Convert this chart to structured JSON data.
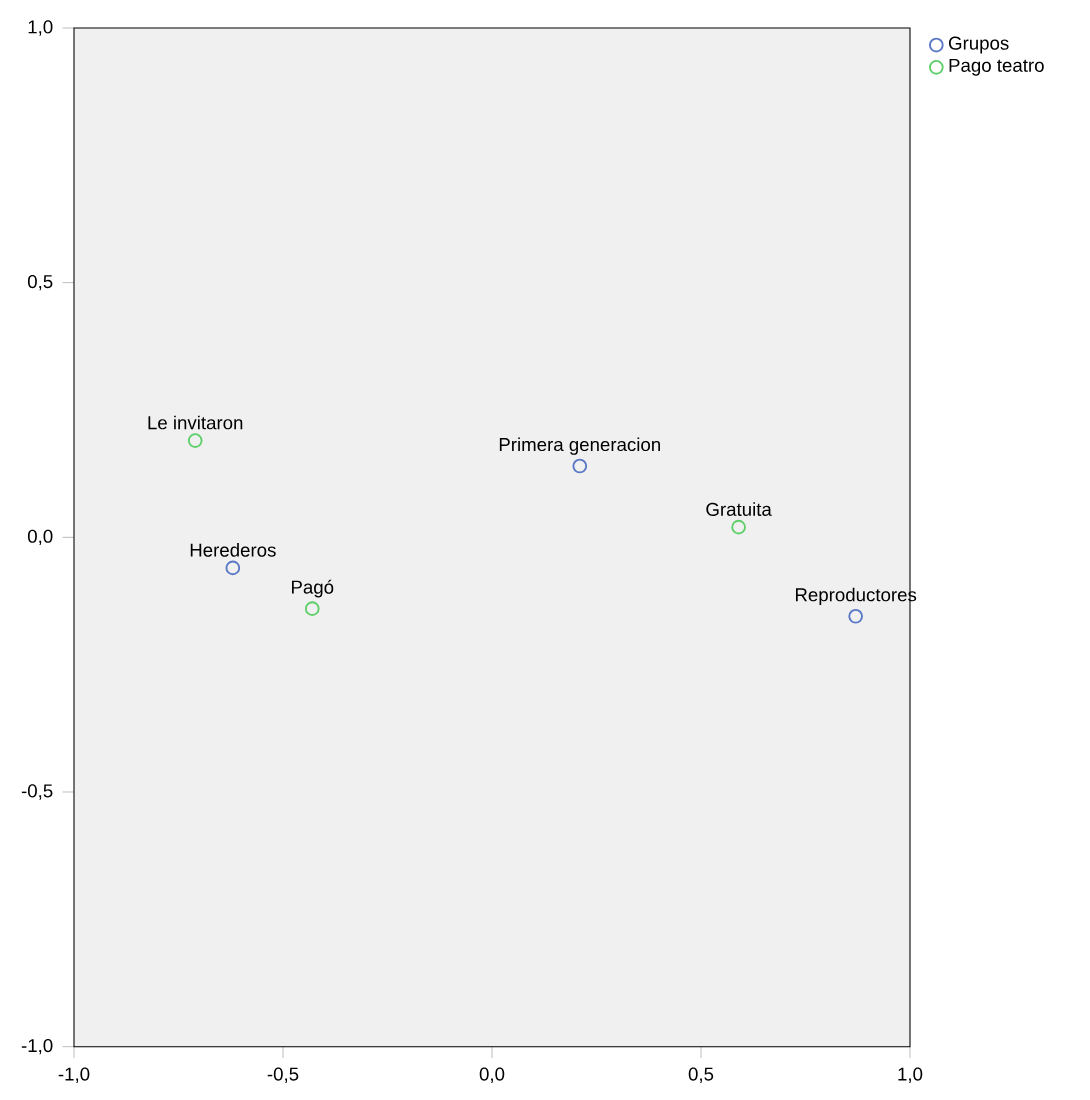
{
  "chart_data": {
    "type": "scatter",
    "series": [
      {
        "name": "Grupos",
        "color": "#5b78c6",
        "x": [
          -0.62,
          0.21,
          0.87
        ],
        "values": [
          -0.06,
          0.14,
          -0.155
        ]
      },
      {
        "name": "Pago teatro",
        "color": "#5fcf6a",
        "x": [
          -0.71,
          -0.43,
          0.59
        ],
        "values": [
          0.19,
          -0.14,
          0.02
        ]
      }
    ],
    "annotations": [
      {
        "text": "Herederos",
        "x": -0.62,
        "y": -0.06
      },
      {
        "text": "Primera generacion",
        "x": 0.21,
        "y": 0.14
      },
      {
        "text": "Reproductores",
        "x": 0.87,
        "y": -0.155
      },
      {
        "text": "Le invitaron",
        "x": -0.71,
        "y": 0.19
      },
      {
        "text": "Pagó",
        "x": -0.43,
        "y": -0.14
      },
      {
        "text": "Gratuita",
        "x": 0.59,
        "y": 0.02
      }
    ],
    "xlim": [
      -1.0,
      1.0
    ],
    "ylim": [
      -1.0,
      1.0
    ],
    "xticks": [
      {
        "value": -1.0,
        "label": "-1,0"
      },
      {
        "value": -0.5,
        "label": "-0,5"
      },
      {
        "value": 0.0,
        "label": "0,0"
      },
      {
        "value": 0.5,
        "label": "0,5"
      },
      {
        "value": 1.0,
        "label": "1,0"
      }
    ],
    "yticks": [
      {
        "value": -1.0,
        "label": "-1,0"
      },
      {
        "value": -0.5,
        "label": "-0,5"
      },
      {
        "value": 0.0,
        "label": "0,0"
      },
      {
        "value": 0.5,
        "label": "0,5"
      },
      {
        "value": 1.0,
        "label": "1,0"
      }
    ],
    "marker": "circle",
    "legend": "top right",
    "grid": false
  }
}
